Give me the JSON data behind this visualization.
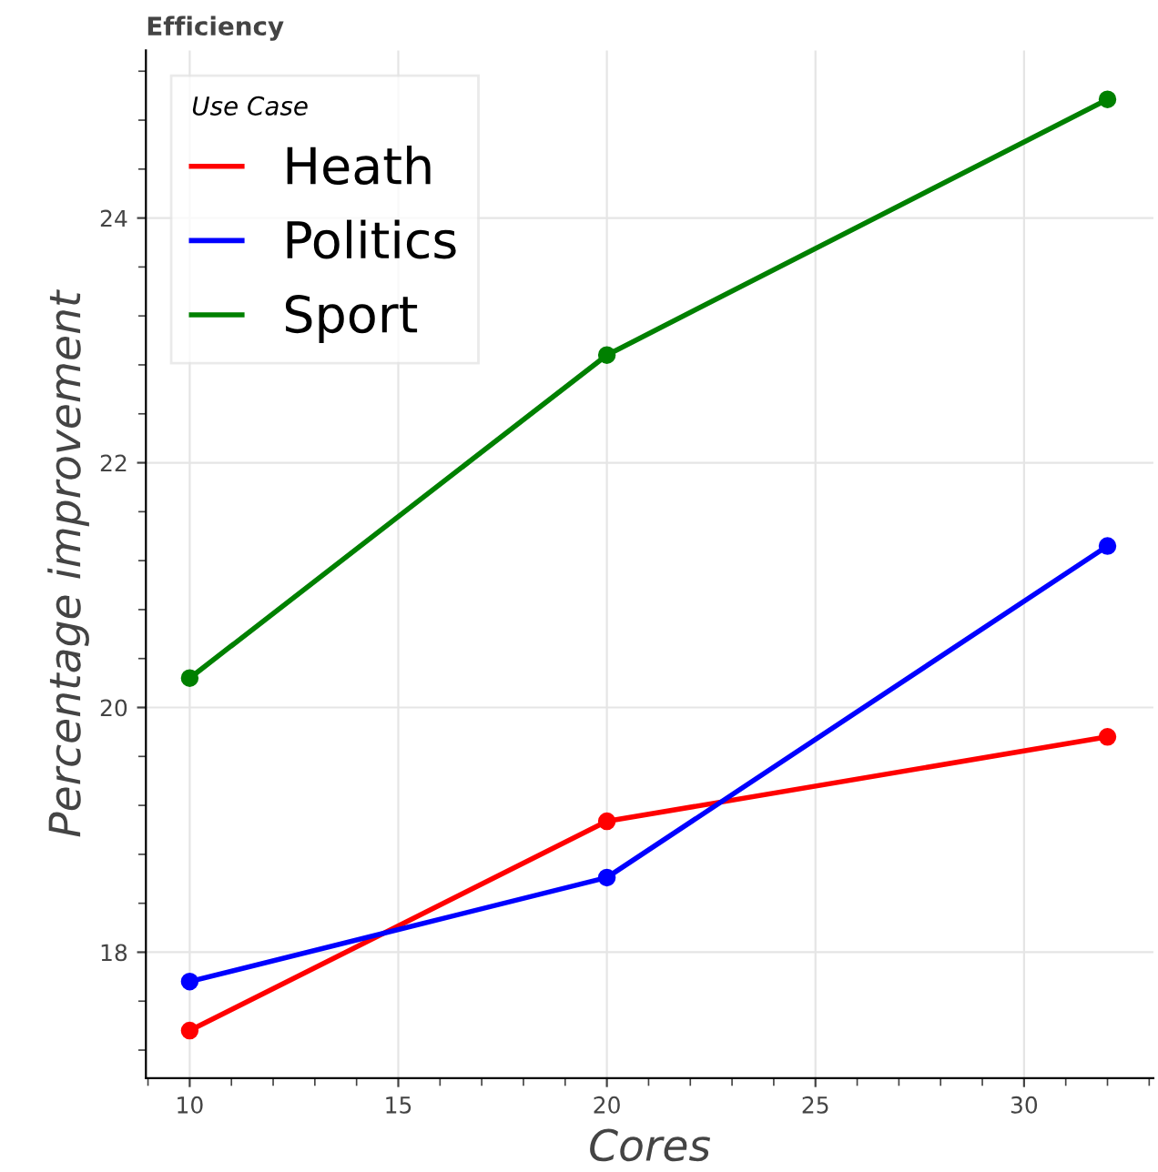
{
  "chart_data": {
    "type": "line",
    "title": "Efficiency",
    "xlabel": "Cores",
    "ylabel": "Percentage improvement",
    "legend_title": "Use Case",
    "x": [
      10,
      20,
      32
    ],
    "series": [
      {
        "name": "Heath",
        "color": "#ff0000",
        "values": [
          17.36,
          19.07,
          19.76
        ]
      },
      {
        "name": "Politics",
        "color": "#0000ff",
        "values": [
          17.76,
          18.61,
          21.32
        ]
      },
      {
        "name": "Sport",
        "color": "#008000",
        "values": [
          20.24,
          22.88,
          24.97
        ]
      }
    ],
    "xlim": [
      8.95,
      33.1
    ],
    "ylim": [
      16.97,
      25.37
    ],
    "xticks": [
      10,
      15,
      20,
      25,
      30
    ],
    "yticks": [
      18,
      20,
      22,
      24
    ],
    "grid": true,
    "legend": "top left",
    "marker": "circle",
    "line_style": "solid"
  }
}
